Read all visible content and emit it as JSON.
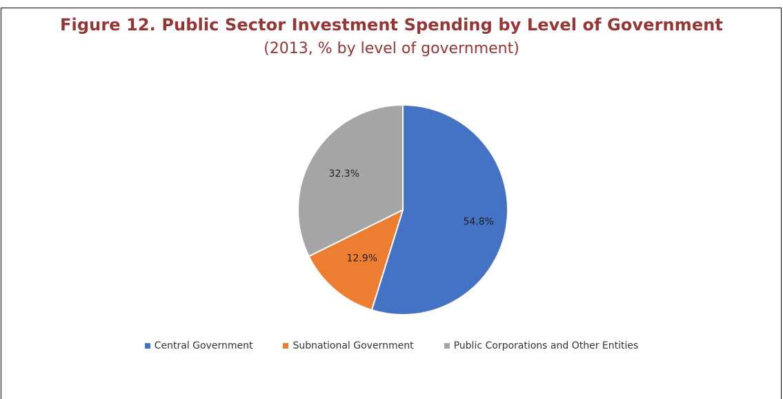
{
  "figure": {
    "title": "Figure 12. Public Sector Investment Spending by Level of Government",
    "subtitle": "(2013, % by level of government)"
  },
  "chart_data": {
    "type": "pie",
    "title": "Figure 12. Public Sector Investment Spending by Level of Government",
    "subtitle": "(2013, % by level of government)",
    "categories": [
      "Central Government",
      "Subnational Government",
      "Public Corporations and Other Entities"
    ],
    "values": [
      54.8,
      12.9,
      32.3
    ],
    "labels": [
      "54.8%",
      "12.9%",
      "32.3%"
    ],
    "colors": [
      "#4472c4",
      "#ed7d31",
      "#a5a5a5"
    ],
    "legend_position": "bottom"
  }
}
